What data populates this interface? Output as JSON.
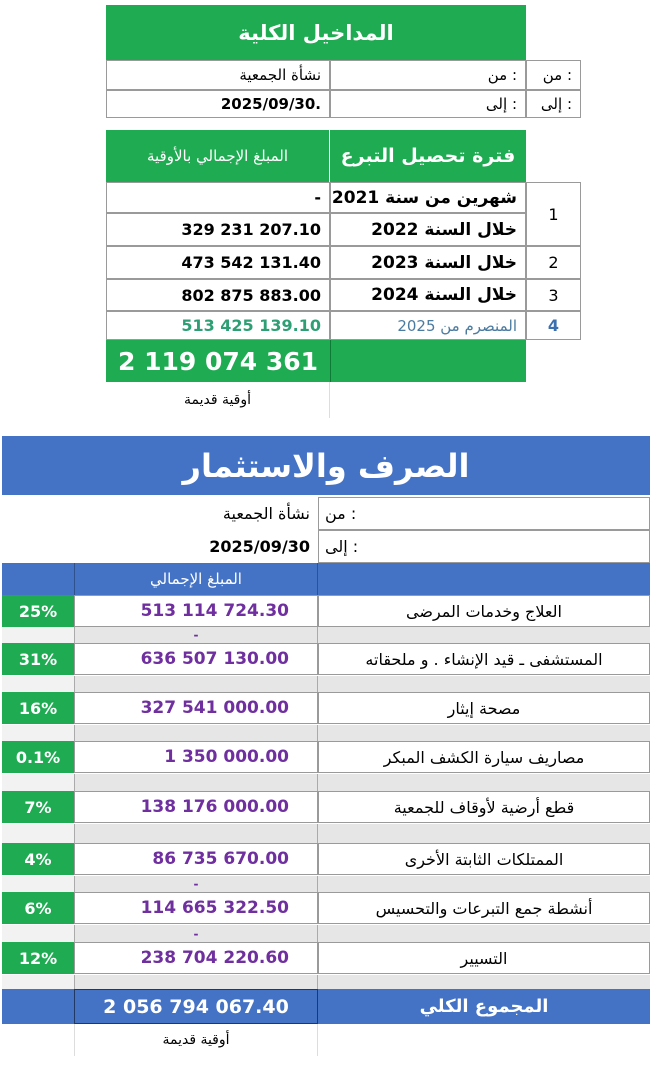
{
  "income": {
    "title": "المداخيل الكلية",
    "from_label": "من :",
    "from_value": "نشأة الجمعية",
    "to_label": "إلى   :",
    "to_value": "2025/09/30.",
    "side_from": "من  :",
    "side_to": "إلى   :",
    "header_period": "فترة تحصيل التبرع",
    "header_amount": "المبلغ الإجمالي بالأوقية",
    "rows": [
      {
        "num": "1",
        "period": "شهرين من سنة 2021",
        "amount": "-"
      },
      {
        "num": "",
        "period": "خلال السنة 2022",
        "amount": "329 231 207.10"
      },
      {
        "num": "2",
        "period": "خلال السنة 2023",
        "amount": "473 542 131.40"
      },
      {
        "num": "3",
        "period": "خلال السنة 2024",
        "amount": "802 875 883.00"
      },
      {
        "num": "4",
        "period": "المنصرم من 2025",
        "amount": "513 425 139.10"
      }
    ],
    "total": "2 119 074 361",
    "currency": "أوقية قديمة"
  },
  "spending": {
    "title": "الصرف والاستثمار",
    "from_label": "من :",
    "from_value": "نشأة الجمعية",
    "to_label": "إلى :",
    "to_value": "2025/09/30",
    "header_amount": "المبلغ الإجمالي",
    "rows": [
      {
        "label": "العلاج وخدمات المرضى",
        "amount": "513 114 724.30",
        "pct": "25%",
        "spacer": "-"
      },
      {
        "label": "المستشفى ـ قيد الإنشاء . و ملحقاته",
        "amount": "636 507 130.00",
        "pct": "31%",
        "spacer": ""
      },
      {
        "label": "مصحة إيثار",
        "amount": "327 541 000.00",
        "pct": "16%",
        "spacer": ""
      },
      {
        "label": "مصاريف سيارة الكشف المبكر",
        "amount": "1 350 000.00",
        "pct": "0.1%",
        "spacer": ""
      },
      {
        "label": "قطع أرضية لأوقاف  للجمعية",
        "amount": "138 176 000.00",
        "pct": "7%",
        "spacer": ""
      },
      {
        "label": "الممتلكات الثابتة الأخرى",
        "amount": "86 735 670.00",
        "pct": "4%",
        "spacer": "-"
      },
      {
        "label": "أنشطة جمع التبرعات والتحسيس",
        "amount": "114 665 322.50",
        "pct": "6%",
        "spacer": "-"
      },
      {
        "label": "التسيير",
        "amount": "238 704 220.60",
        "pct": "12%",
        "spacer": ""
      }
    ],
    "total_label": "المجموع الكلي",
    "total": "2 056 794 067.40",
    "currency": "أوقية قديمة"
  },
  "colors": {
    "green": "#1fab52",
    "blue": "#4472c4",
    "purple": "#6f2f9f"
  }
}
